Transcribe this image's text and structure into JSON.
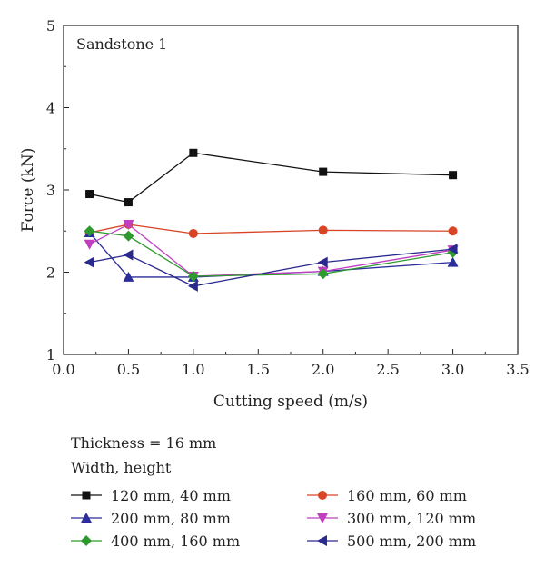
{
  "chart_data": {
    "type": "line",
    "panel_label": "Sandstone 1",
    "xlabel": "Cutting speed (m/s)",
    "ylabel": "Force (kN)",
    "xlim": [
      0.0,
      3.5
    ],
    "ylim": [
      1,
      5
    ],
    "xticks": [
      "0.0",
      "0.5",
      "1.0",
      "1.5",
      "2.0",
      "2.5",
      "3.0",
      "3.5"
    ],
    "yticks": [
      "1",
      "2",
      "3",
      "4",
      "5"
    ],
    "x": [
      0.2,
      0.5,
      1.0,
      2.0,
      3.0
    ],
    "grid": false,
    "legend_position": "below",
    "notes": [
      "Thickness = 16 mm",
      "Width, height"
    ],
    "series": [
      {
        "name": "120 mm, 40 mm",
        "color": "#111111",
        "marker": "square",
        "values": [
          2.95,
          2.85,
          3.45,
          3.22,
          3.18
        ]
      },
      {
        "name": "160 mm, 60 mm",
        "color": "#d94426",
        "marker": "circle",
        "values": [
          2.48,
          2.58,
          2.47,
          2.51,
          2.5
        ]
      },
      {
        "name": "200 mm, 80 mm",
        "color": "#2b2d9b",
        "marker": "triangle-up",
        "values": [
          2.48,
          1.94,
          1.94,
          2.01,
          2.12
        ]
      },
      {
        "name": "300 mm, 120 mm",
        "color": "#c13ec1",
        "marker": "triangle-down",
        "values": [
          2.34,
          2.58,
          1.95,
          2.01,
          2.27
        ]
      },
      {
        "name": "400 mm, 160 mm",
        "color": "#2e9a2e",
        "marker": "diamond",
        "values": [
          2.5,
          2.44,
          1.95,
          1.98,
          2.24
        ]
      },
      {
        "name": "500 mm, 200 mm",
        "color": "#2a2a8e",
        "marker": "triangle-left",
        "values": [
          2.12,
          2.21,
          1.83,
          2.12,
          2.28
        ]
      }
    ]
  }
}
